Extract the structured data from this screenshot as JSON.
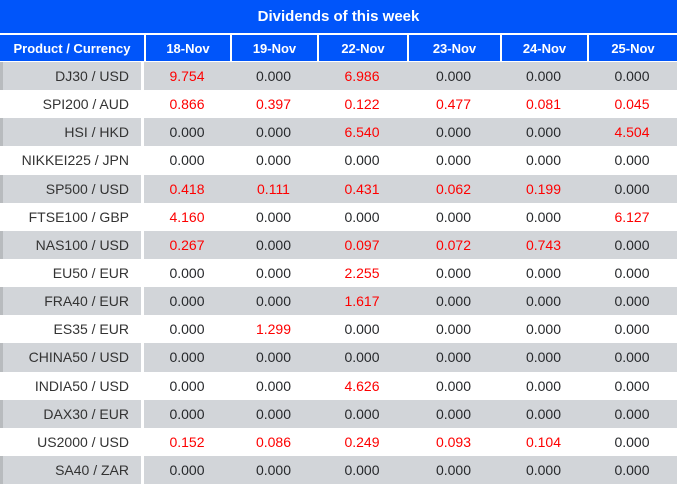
{
  "colors": {
    "header_blue": "#0055FA",
    "positive_red": "#FE0000",
    "zero_black": "#26282B",
    "row_gray": "#D2D5D9",
    "row_white": "#FFFFFF"
  },
  "chart_data": {
    "type": "table",
    "title": "Dividends of this week",
    "columns": [
      "Product / Currency",
      "18-Nov",
      "19-Nov",
      "22-Nov",
      "23-Nov",
      "24-Nov",
      "25-Nov"
    ],
    "rows": [
      {
        "product": "DJ30 / USD",
        "values": [
          "9.754",
          "0.000",
          "6.986",
          "0.000",
          "0.000",
          "0.000"
        ]
      },
      {
        "product": "SPI200 / AUD",
        "values": [
          "0.866",
          "0.397",
          "0.122",
          "0.477",
          "0.081",
          "0.045"
        ]
      },
      {
        "product": "HSI / HKD",
        "values": [
          "0.000",
          "0.000",
          "6.540",
          "0.000",
          "0.000",
          "4.504"
        ]
      },
      {
        "product": "NIKKEI225 / JPN",
        "values": [
          "0.000",
          "0.000",
          "0.000",
          "0.000",
          "0.000",
          "0.000"
        ]
      },
      {
        "product": "SP500 / USD",
        "values": [
          "0.418",
          "0.111",
          "0.431",
          "0.062",
          "0.199",
          "0.000"
        ]
      },
      {
        "product": "FTSE100 / GBP",
        "values": [
          "4.160",
          "0.000",
          "0.000",
          "0.000",
          "0.000",
          "6.127"
        ]
      },
      {
        "product": "NAS100 / USD",
        "values": [
          "0.267",
          "0.000",
          "0.097",
          "0.072",
          "0.743",
          "0.000"
        ]
      },
      {
        "product": "EU50 / EUR",
        "values": [
          "0.000",
          "0.000",
          "2.255",
          "0.000",
          "0.000",
          "0.000"
        ]
      },
      {
        "product": "FRA40 / EUR",
        "values": [
          "0.000",
          "0.000",
          "1.617",
          "0.000",
          "0.000",
          "0.000"
        ]
      },
      {
        "product": "ES35 / EUR",
        "values": [
          "0.000",
          "1.299",
          "0.000",
          "0.000",
          "0.000",
          "0.000"
        ]
      },
      {
        "product": "CHINA50 / USD",
        "values": [
          "0.000",
          "0.000",
          "0.000",
          "0.000",
          "0.000",
          "0.000"
        ]
      },
      {
        "product": "INDIA50 / USD",
        "values": [
          "0.000",
          "0.000",
          "4.626",
          "0.000",
          "0.000",
          "0.000"
        ]
      },
      {
        "product": "DAX30 / EUR",
        "values": [
          "0.000",
          "0.000",
          "0.000",
          "0.000",
          "0.000",
          "0.000"
        ]
      },
      {
        "product": "US2000 / USD",
        "values": [
          "0.152",
          "0.086",
          "0.249",
          "0.093",
          "0.104",
          "0.000"
        ]
      },
      {
        "product": "SA40 / ZAR",
        "values": [
          "0.000",
          "0.000",
          "0.000",
          "0.000",
          "0.000",
          "0.000"
        ]
      }
    ],
    "value_style_rule": "values greater than zero are shown in red; zero values in black",
    "layout_hints": {
      "alternating_rows": true,
      "first_column_align": "right",
      "value_align": "center"
    }
  }
}
